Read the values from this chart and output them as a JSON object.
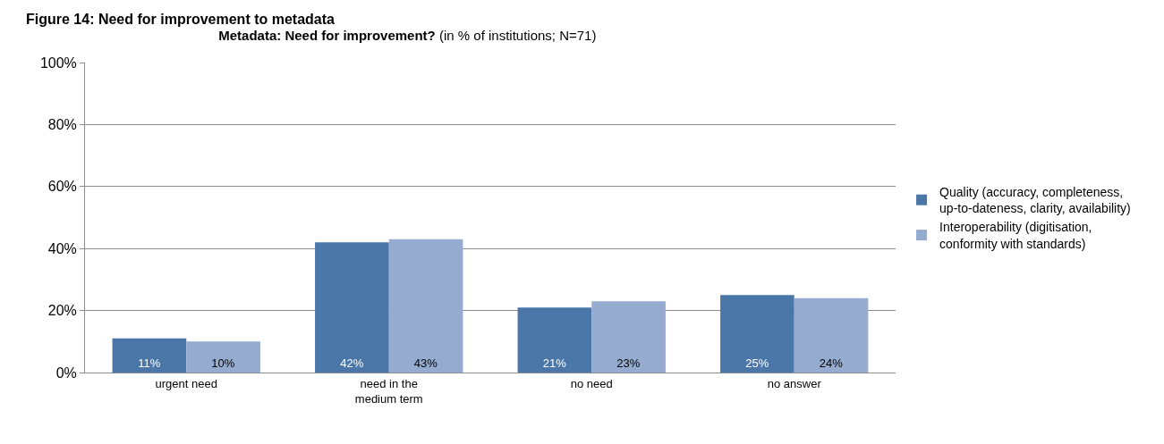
{
  "chart_data": {
    "type": "bar",
    "title": "Metadata: Need for improvement?",
    "subtitle": "(in % of institutions; N=71)",
    "annotations": [
      "Figure 14: Need for improvement to metadata"
    ],
    "categories": [
      "urgent need",
      "need in the medium term",
      "no need",
      "no answer"
    ],
    "series": [
      {
        "name": "Quality (accuracy, completeness, up-to-dateness, clarity, availability)",
        "color": "#4a76a8",
        "values": [
          11,
          42,
          21,
          25
        ],
        "value_labels": [
          "11%",
          "42%",
          "21%",
          "25%"
        ]
      },
      {
        "name": "Interoperability (digitisation, conformity with standards)",
        "color": "#95abd0",
        "values": [
          10,
          43,
          23,
          24
        ],
        "value_labels": [
          "10%",
          "43%",
          "23%",
          "24%"
        ]
      }
    ],
    "ylim": [
      0,
      100
    ],
    "yticks": [
      {
        "value": 0,
        "label": "0%"
      },
      {
        "value": 20,
        "label": "20%"
      },
      {
        "value": 40,
        "label": "40%"
      },
      {
        "value": 60,
        "label": "60%"
      },
      {
        "value": 80,
        "label": "80%"
      },
      {
        "value": 100,
        "label": "100%"
      }
    ],
    "grid": "y",
    "legend": "right"
  }
}
